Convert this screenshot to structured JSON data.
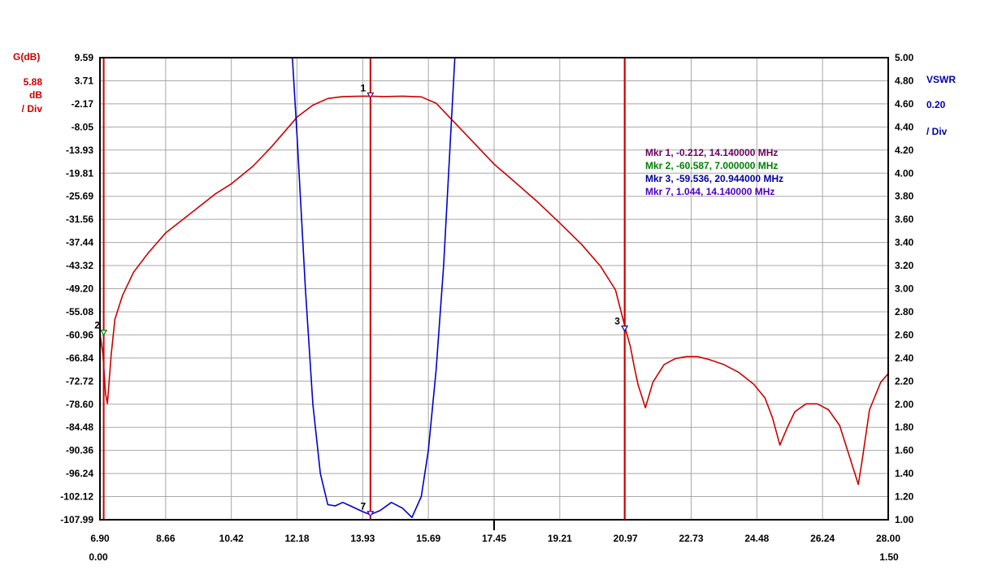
{
  "chart_data": {
    "type": "line",
    "left_axis": {
      "title": "G(dB)",
      "scale_value": "5.88",
      "scale_unit": "dB",
      "scale_suffix": "/ Div",
      "ticks": [
        "9.59",
        "3.71",
        "-2.17",
        "-8.05",
        "-13.93",
        "-19.81",
        "-25.69",
        "-31.56",
        "-37.44",
        "-43.32",
        "-49.20",
        "-55.08",
        "-60.96",
        "-66.84",
        "-72.72",
        "-78.60",
        "-84.48",
        "-90.36",
        "-96.24",
        "-102.12",
        "-107.99"
      ],
      "range": [
        -107.99,
        9.59
      ],
      "color": "#cc0000"
    },
    "right_axis": {
      "title": "VSWR",
      "scale_value": "0.20",
      "scale_suffix": "/ Div",
      "ticks": [
        "5.00",
        "4.80",
        "4.60",
        "4.40",
        "4.20",
        "4.00",
        "3.80",
        "3.60",
        "3.40",
        "3.20",
        "3.00",
        "2.80",
        "2.60",
        "2.40",
        "2.20",
        "2.00",
        "1.80",
        "1.60",
        "1.40",
        "1.20",
        "1.00"
      ],
      "range": [
        1.0,
        5.0
      ],
      "color": "#0000aa"
    },
    "x_axis": {
      "ticks": [
        "6.90",
        "8.66",
        "10.42",
        "12.18",
        "13.93",
        "15.69",
        "17.45",
        "19.21",
        "20.97",
        "22.73",
        "24.48",
        "26.24",
        "28.00"
      ],
      "range": [
        6.9,
        28.0
      ],
      "sub_left": "0.00",
      "sub_right": "1.50"
    },
    "grid": true,
    "series": [
      {
        "key": "gain",
        "axis": "left",
        "color": "#cc0000",
        "x": [
          6.9,
          6.98,
          7.05,
          7.1,
          7.2,
          7.3,
          7.5,
          7.8,
          8.2,
          8.66,
          9.2,
          10.0,
          10.42,
          11.0,
          11.5,
          12.0,
          12.18,
          12.6,
          13.0,
          13.4,
          13.93,
          14.14,
          14.5,
          15.0,
          15.5,
          15.9,
          16.3,
          16.8,
          17.45,
          18.0,
          18.6,
          19.21,
          19.8,
          20.3,
          20.7,
          20.97,
          21.1,
          21.2,
          21.3,
          21.5,
          21.7,
          22.0,
          22.3,
          22.6,
          22.9,
          23.2,
          23.6,
          24.0,
          24.4,
          24.7,
          24.9,
          25.1,
          25.3,
          25.5,
          25.8,
          26.1,
          26.4,
          26.7,
          26.9,
          27.1,
          27.2,
          27.3,
          27.5,
          27.8,
          28.0
        ],
        "y": [
          -60.6,
          -66.0,
          -76.0,
          -78.4,
          -66.0,
          -57.0,
          -51.0,
          -45.0,
          -40.0,
          -35.0,
          -31.0,
          -25.0,
          -22.5,
          -18.0,
          -13.0,
          -7.5,
          -5.5,
          -2.5,
          -0.8,
          -0.3,
          -0.2,
          -0.212,
          -0.3,
          -0.2,
          -0.4,
          -2.0,
          -6.0,
          -11.0,
          -17.5,
          -22.0,
          -27.0,
          -32.5,
          -38.0,
          -43.5,
          -49.5,
          -59.536,
          -64.0,
          -69.0,
          -73.5,
          -79.5,
          -73.0,
          -68.5,
          -67.0,
          -66.5,
          -66.5,
          -67.2,
          -68.5,
          -70.5,
          -73.5,
          -77.0,
          -82.0,
          -89.0,
          -84.5,
          -80.5,
          -78.5,
          -78.5,
          -80.0,
          -84.0,
          -90.0,
          -96.0,
          -99.0,
          -93.0,
          -80.0,
          -73.0,
          -70.8
        ]
      },
      {
        "key": "vswr",
        "axis": "right",
        "color": "#0000cc",
        "x": [
          12.05,
          12.18,
          12.4,
          12.6,
          12.8,
          13.0,
          13.2,
          13.4,
          13.6,
          13.93,
          14.14,
          14.4,
          14.7,
          15.0,
          15.25,
          15.5,
          15.69,
          15.9,
          16.1,
          16.3,
          16.4
        ],
        "y": [
          5.0,
          4.3,
          3.0,
          2.0,
          1.4,
          1.13,
          1.12,
          1.15,
          1.12,
          1.07,
          1.044,
          1.08,
          1.15,
          1.1,
          1.02,
          1.2,
          1.6,
          2.3,
          3.2,
          4.4,
          5.0
        ]
      }
    ],
    "markers": [
      {
        "label": "1",
        "x": 14.14,
        "y": -0.212,
        "axis": "left",
        "color": "#6b0060",
        "readout": "Mkr 1, -0.212, 14.140000 MHz"
      },
      {
        "label": "2",
        "x": 7.0,
        "y": -60.587,
        "axis": "left",
        "color": "#008000",
        "readout": "Mkr 2, -60.587, 7.000000 MHz"
      },
      {
        "label": "3",
        "x": 20.944,
        "y": -59.536,
        "axis": "left",
        "color": "#000099",
        "readout": "Mkr 3, -59.536, 20.944000 MHz"
      },
      {
        "label": "7",
        "x": 14.14,
        "y": 1.044,
        "axis": "right",
        "color": "#4a00c0",
        "readout": "Mkr 7, 1.044, 14.140000 MHz"
      }
    ],
    "vertical_lines": [
      7.0,
      14.14,
      20.944
    ],
    "vertical_line_color": "#cc0000"
  }
}
